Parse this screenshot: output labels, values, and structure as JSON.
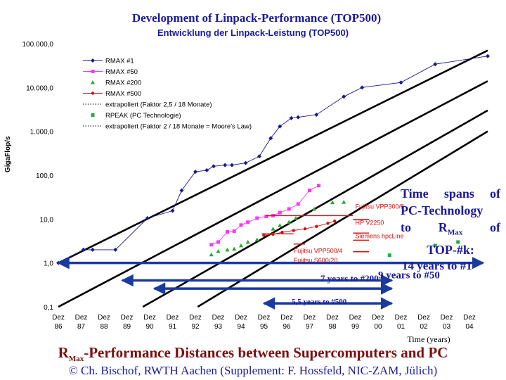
{
  "slide": {
    "top_title": "Development of Linpack-Performance (TOP500)",
    "bottom_title_prefix": "R",
    "bottom_title_sub": "Max",
    "bottom_title_rest": "-Performance Distances between Supercomputers and PC",
    "credit": "© Ch. Bischof, RWTH Aachen (Supplement: F. Hossfeld, NIC-ZAM, Jülich)",
    "annotation": {
      "line1": "Time spans of",
      "line2": "PC-Technology",
      "line3_pre": "to R",
      "line3_sub": "Max",
      "line3_post": " of",
      "line4": "TOP-#k:",
      "first": "14 years to #1"
    }
  },
  "colors": {
    "rmax1": "#1a1a8c",
    "rmax50": "#ff33ff",
    "rmax200": "#22aa22",
    "rmax500": "#d81010",
    "extrap": "#000000",
    "rpeak_pc": "#22aa44",
    "arrow": "#1a3aa0",
    "title": "#1a1a9c",
    "bottom_title": "#7a1010"
  },
  "chart_data": {
    "type": "line",
    "title": "Entwicklung der Linpack-Leistung (TOP500)",
    "xlabel": "Time (years)",
    "ylabel": "GigaFlop/s",
    "yscale": "log",
    "ylim": [
      0.1,
      100000
    ],
    "categories": [
      "Dez 86",
      "Dez 87",
      "Dez 88",
      "Dez 89",
      "Dez 90",
      "Dez 91",
      "Dez 92",
      "Dez 93",
      "Dez 94",
      "Dez 95",
      "Dez 96",
      "Dez 97",
      "Dez 98",
      "Dez 99",
      "Dez 00",
      "Dez 01",
      "Dez 02",
      "Dez 03",
      "Dez 04"
    ],
    "yticks": [
      0.1,
      1,
      10,
      100,
      1000,
      10000,
      100000
    ],
    "ytick_labels": [
      "0,1",
      "1,0",
      "10,0",
      "100,0",
      "1.000,0",
      "10.000,0",
      "100.000,0"
    ],
    "legend": [
      {
        "name": "RMAX      #1",
        "marker": "diamond",
        "color": "#1a1a8c",
        "style": "solid"
      },
      {
        "name": "RMAX   #50",
        "marker": "square",
        "color": "#ff33ff",
        "style": "solid"
      },
      {
        "name": "RMAX #200",
        "marker": "triangle",
        "color": "#22aa22",
        "style": "none"
      },
      {
        "name": "RMAX #500",
        "marker": "circle",
        "color": "#d81010",
        "style": "solid"
      },
      {
        "name": "extrapoliert (Faktor 2,5 / 18 Monate)",
        "marker": "none",
        "color": "#000000",
        "style": "dotted"
      },
      {
        "name": "RPEAK (PC Technologie)",
        "marker": "square",
        "color": "#22aa44",
        "style": "none"
      },
      {
        "name": "extrapoliert (Faktor 2 / 18 Monate = Moore's Law)",
        "marker": "none",
        "color": "#000000",
        "style": "dotted"
      }
    ],
    "series": [
      {
        "name": "RMAX #1",
        "points": [
          [
            0,
            1.0
          ],
          [
            1.1,
            2.0
          ],
          [
            1.5,
            2.0
          ],
          [
            2.5,
            2.0
          ],
          [
            3.9,
            10.5
          ],
          [
            5.0,
            15.5
          ],
          [
            5.4,
            45.0
          ],
          [
            6.0,
            120
          ],
          [
            6.5,
            130
          ],
          [
            6.8,
            160
          ],
          [
            7.3,
            170
          ],
          [
            7.6,
            170
          ],
          [
            8.2,
            190
          ],
          [
            8.8,
            270
          ],
          [
            9.3,
            700
          ],
          [
            9.7,
            1300
          ],
          [
            10.2,
            2000
          ],
          [
            10.5,
            2100
          ],
          [
            11.3,
            2400
          ],
          [
            12.5,
            6200
          ],
          [
            13.3,
            10000
          ],
          [
            15.0,
            13000
          ],
          [
            16.5,
            34000
          ],
          [
            18.8,
            52000
          ]
        ]
      },
      {
        "name": "RMAX #50",
        "points": [
          [
            6.7,
            2.6
          ],
          [
            7.0,
            3.0
          ],
          [
            7.4,
            5.1
          ],
          [
            7.7,
            5.3
          ],
          [
            8.0,
            7.3
          ],
          [
            8.3,
            8.5
          ],
          [
            8.7,
            10.5
          ],
          [
            9.1,
            11.5
          ],
          [
            9.4,
            12.0
          ],
          [
            9.7,
            14.0
          ],
          [
            10.1,
            17.0
          ],
          [
            10.5,
            22.0
          ],
          [
            11.0,
            45.0
          ],
          [
            11.4,
            58.0
          ]
        ]
      },
      {
        "name": "RMAX #200",
        "points": [
          [
            6.7,
            1.55
          ],
          [
            7.0,
            1.85
          ],
          [
            7.4,
            2.0
          ],
          [
            7.7,
            2.1
          ],
          [
            8.0,
            2.5
          ],
          [
            8.3,
            3.0
          ],
          [
            8.7,
            3.4
          ],
          [
            9.0,
            4.4
          ],
          [
            9.4,
            6.0
          ],
          [
            9.7,
            7.2
          ],
          [
            10.1,
            8.6
          ],
          [
            10.4,
            10.5
          ],
          [
            11.2,
            17.0
          ],
          [
            12.0,
            24.0
          ],
          [
            12.5,
            24.5
          ]
        ]
      },
      {
        "name": "RMAX #500",
        "points": [
          [
            9.0,
            4.3
          ],
          [
            9.4,
            4.5
          ],
          [
            9.8,
            5.0
          ],
          [
            10.3,
            5.5
          ],
          [
            10.8,
            6.0
          ],
          [
            11.3,
            6.8
          ],
          [
            11.8,
            8.0
          ],
          [
            12.1,
            9.0
          ]
        ]
      },
      {
        "name": "RPEAK (PC Technologie)",
        "points": [
          [
            14.5,
            1.5
          ],
          [
            16.5,
            2.5
          ],
          [
            17.5,
            3.0
          ]
        ]
      }
    ],
    "trend_lines": [
      {
        "name": "extrapoliert #1",
        "from": [
          0,
          1.0
        ],
        "to": [
          18.8,
          70000
        ]
      },
      {
        "name": "extrapoliert #50",
        "from": [
          0,
          0.1
        ],
        "to": [
          18.8,
          14000
        ]
      },
      {
        "name": "extrapoliert #200",
        "from": [
          3.7,
          0.1
        ],
        "to": [
          18.8,
          3000
        ]
      },
      {
        "name": "extrapoliert #500",
        "from": [
          6.1,
          0.1
        ],
        "to": [
          18.8,
          1000
        ]
      }
    ],
    "machine_labels": [
      {
        "text": "Fujitsu VPP300/8",
        "x": 13.0,
        "y": 19.5
      },
      {
        "text": "HP V2250",
        "x": 13.0,
        "y": 8.3
      },
      {
        "text": "Siemens hpcLine",
        "x": 13.0,
        "y": 4.1
      },
      {
        "text": "Fujitsu VPP500/4",
        "x": 10.3,
        "y": 1.9
      },
      {
        "text": "Fujitsu  S600/20",
        "x": 10.3,
        "y": 1.15
      }
    ],
    "machine_pointers": [
      {
        "from_x": 9.1,
        "to_x": 12.9,
        "y": 12.0
      },
      {
        "from_x": 12.9,
        "to_x": 13.6,
        "y": 9.8
      },
      {
        "from_x": 12.9,
        "to_x": 13.6,
        "y": 4.8
      },
      {
        "from_x": 8.9,
        "to_x": 10.3,
        "y": 4.6
      },
      {
        "from_x": 10.3,
        "to_x": 10.8,
        "y": 2.7
      },
      {
        "from_x": 12.9,
        "to_x": 13.6,
        "y": 3.3
      },
      {
        "from_x": 12.9,
        "to_x": 13.6,
        "y": 1.8
      }
    ],
    "spans": [
      {
        "label": "14 years to #1",
        "from_x": 0.0,
        "to_x": 18.6,
        "y": 1.0
      },
      {
        "label": "9 years to #50",
        "from_x": 2.8,
        "to_x": 14.6,
        "y": 0.4
      },
      {
        "label": "7 years to #200",
        "from_x": 4.2,
        "to_x": 14.6,
        "y": 0.26
      },
      {
        "label": "5,5 years to #500",
        "from_x": 9.0,
        "to_x": 14.6,
        "y": 0.12
      }
    ]
  }
}
